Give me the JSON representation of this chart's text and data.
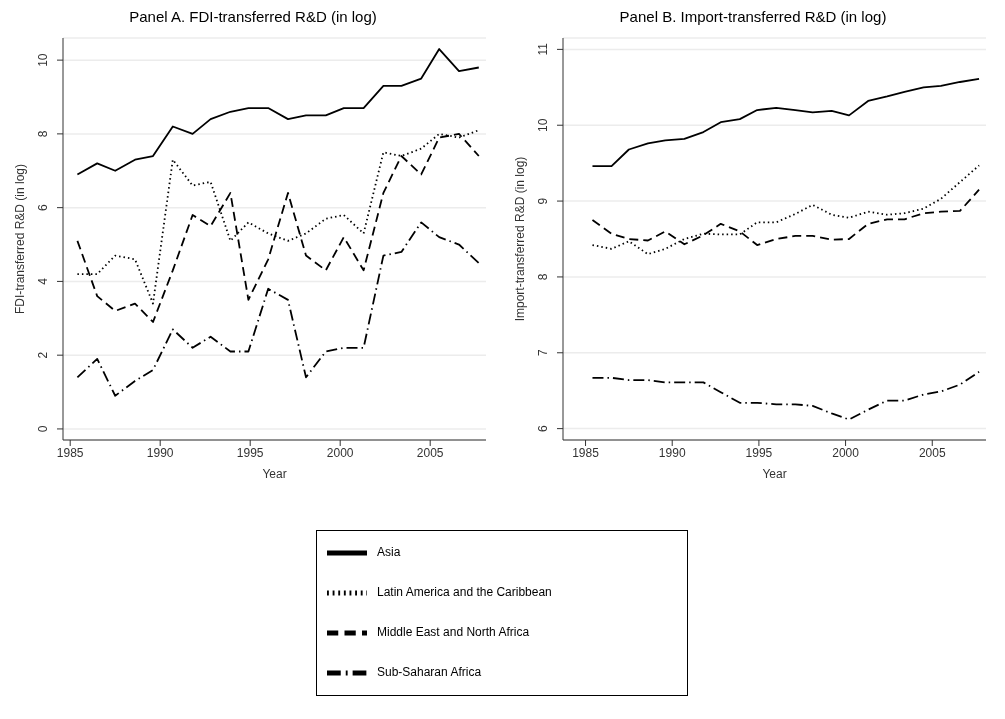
{
  "chart_data": [
    {
      "type": "line",
      "title": "Panel A. FDI-transferred R&D (in log)",
      "xlabel": "Year",
      "ylabel": "FDI-transferred R&D (in log)",
      "x": [
        1985.4,
        1986.5,
        1987.5,
        1988.6,
        1989.6,
        1990.7,
        1991.8,
        1992.8,
        1993.9,
        1994.9,
        1996.0,
        1997.1,
        1998.1,
        1999.2,
        2000.2,
        2001.3,
        2002.4,
        2003.4,
        2004.5,
        2005.5,
        2006.6,
        2007.7
      ],
      "xlim": [
        1984.6,
        2008.1
      ],
      "xticks": [
        1985,
        1990,
        1995,
        2000,
        2005
      ],
      "ylim": [
        -0.3,
        10.6
      ],
      "yticks": [
        0,
        2,
        4,
        6,
        8,
        10
      ],
      "grid": "y",
      "legend": "bottom",
      "series": [
        {
          "name": "Asia",
          "color": "#000000",
          "line_style": "solid",
          "values": [
            6.9,
            7.2,
            7.0,
            7.3,
            7.4,
            8.2,
            8.0,
            8.4,
            8.6,
            8.7,
            8.7,
            8.4,
            8.5,
            8.5,
            8.7,
            8.7,
            9.3,
            9.3,
            9.5,
            10.3,
            9.7,
            9.8
          ]
        },
        {
          "name": "Latin America and the Caribbean",
          "color": "#000000",
          "line_style": "dotted",
          "values": [
            4.2,
            4.2,
            4.7,
            4.6,
            3.4,
            7.3,
            6.6,
            6.7,
            5.1,
            5.6,
            5.3,
            5.1,
            5.3,
            5.7,
            5.8,
            5.3,
            7.5,
            7.4,
            7.6,
            8.0,
            7.9,
            8.1
          ]
        },
        {
          "name": "Middle East and North Africa",
          "color": "#000000",
          "line_style": "dashed",
          "values": [
            5.1,
            3.6,
            3.2,
            3.4,
            2.9,
            4.3,
            5.8,
            5.5,
            6.4,
            3.5,
            4.6,
            6.4,
            4.7,
            4.3,
            5.2,
            4.3,
            6.4,
            7.4,
            6.9,
            7.9,
            8.0,
            7.4
          ]
        },
        {
          "name": "Sub-Saharan Africa",
          "color": "#000000",
          "line_style": "dashdot",
          "values": [
            1.4,
            1.9,
            0.9,
            1.3,
            1.6,
            2.7,
            2.2,
            2.5,
            2.1,
            2.1,
            3.8,
            3.5,
            1.4,
            2.1,
            2.2,
            2.2,
            4.7,
            4.8,
            5.6,
            5.2,
            5.0,
            4.5
          ]
        }
      ]
    },
    {
      "type": "line",
      "title": "Panel B. Import-transferred R&D (in log)",
      "xlabel": "Year",
      "ylabel": "Import-transferred R&D (in log)",
      "x": [
        1985.4,
        1986.5,
        1987.5,
        1988.6,
        1989.6,
        1990.7,
        1991.8,
        1992.8,
        1993.9,
        1994.9,
        1996.0,
        1997.1,
        1998.1,
        1999.2,
        2000.2,
        2001.3,
        2002.4,
        2003.4,
        2004.5,
        2005.5,
        2006.6,
        2007.7
      ],
      "xlim": [
        1983.7,
        2008.1
      ],
      "xticks": [
        1985,
        1990,
        1995,
        2000,
        2005
      ],
      "ylim": [
        5.85,
        11.15
      ],
      "yticks": [
        6,
        7,
        8,
        9,
        10,
        11
      ],
      "grid": "y",
      "series": [
        {
          "color": "#000000",
          "line_style": "solid",
          "values": [
            9.46,
            9.46,
            9.68,
            9.76,
            9.8,
            9.82,
            9.91,
            10.04,
            10.08,
            10.2,
            10.23,
            10.2,
            10.17,
            10.19,
            10.13,
            10.32,
            10.38,
            10.44,
            10.5,
            10.52,
            10.57,
            10.61
          ]
        },
        {
          "color": "#000000",
          "line_style": "dotted",
          "values": [
            8.42,
            8.37,
            8.47,
            8.3,
            8.37,
            8.5,
            8.57,
            8.56,
            8.56,
            8.72,
            8.72,
            8.83,
            8.95,
            8.82,
            8.78,
            8.86,
            8.82,
            8.84,
            8.9,
            9.03,
            9.25,
            9.47
          ]
        },
        {
          "color": "#000000",
          "line_style": "dashed",
          "values": [
            8.75,
            8.57,
            8.5,
            8.48,
            8.6,
            8.43,
            8.55,
            8.7,
            8.6,
            8.42,
            8.5,
            8.54,
            8.54,
            8.49,
            8.5,
            8.7,
            8.76,
            8.76,
            8.84,
            8.86,
            8.87,
            9.15
          ]
        },
        {
          "color": "#000000",
          "line_style": "dashdot",
          "values": [
            6.67,
            6.67,
            6.64,
            6.64,
            6.61,
            6.61,
            6.61,
            6.48,
            6.34,
            6.34,
            6.32,
            6.32,
            6.3,
            6.2,
            6.12,
            6.25,
            6.37,
            6.37,
            6.45,
            6.49,
            6.58,
            6.75
          ]
        }
      ]
    }
  ]
}
